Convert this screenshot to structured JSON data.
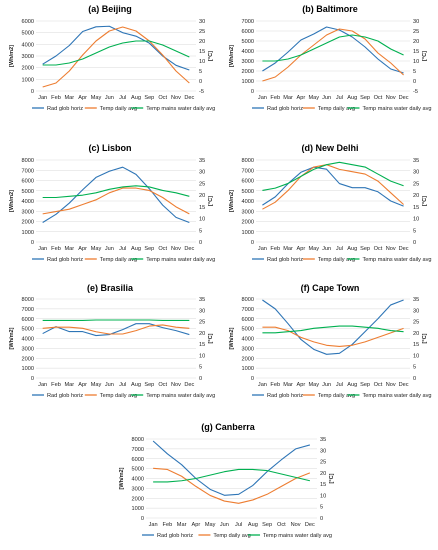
{
  "colors": {
    "rad": "#2E75B6",
    "temp": "#ED7D31",
    "mains": "#00B050",
    "grid": "#d9d9d9"
  },
  "legend": [
    "Rad glob horiz",
    "Temp daily avg",
    "Temp mains water daily avg"
  ],
  "chart_data": [
    {
      "type": "line",
      "title": "(a) Beijing",
      "categories": [
        "Jan",
        "Feb",
        "Mar",
        "Apr",
        "May",
        "Jun",
        "Jul",
        "Aug",
        "Sep",
        "Oct",
        "Nov",
        "Dec"
      ],
      "ylabel_left": "[Wh/m2]",
      "ylabel_right": "[°C]",
      "ylim_left": [
        0,
        6000
      ],
      "ystep_left": 1000,
      "ylim_right": [
        -5,
        30
      ],
      "ystep_right": 5,
      "series": [
        {
          "name": "Rad glob horiz",
          "axis": "left",
          "values": [
            2300,
            3000,
            3900,
            5100,
            5500,
            5550,
            5000,
            4700,
            4100,
            3000,
            2200,
            1800
          ]
        },
        {
          "name": "Temp daily avg",
          "axis": "right",
          "values": [
            -3,
            -1,
            5,
            13,
            20,
            25,
            27,
            25,
            20,
            13,
            5,
            -1
          ]
        },
        {
          "name": "Temp mains water daily avg",
          "axis": "right",
          "values": [
            8,
            8,
            9,
            11,
            14,
            17,
            19,
            20,
            20,
            18,
            15,
            12
          ]
        }
      ]
    },
    {
      "type": "line",
      "title": "(b) Baltimore",
      "categories": [
        "Jan",
        "Feb",
        "Mar",
        "Apr",
        "May",
        "Jun",
        "Jul",
        "Aug",
        "Sep",
        "Oct",
        "Nov",
        "Dec"
      ],
      "ylabel_left": "[Wh/m2]",
      "ylabel_right": "[°C]",
      "ylim_left": [
        0,
        7000
      ],
      "ystep_left": 1000,
      "ylim_right": [
        -5,
        30
      ],
      "ystep_right": 5,
      "series": [
        {
          "name": "Rad glob horiz",
          "axis": "left",
          "values": [
            2000,
            2800,
            3900,
            5100,
            5700,
            6400,
            6100,
            5400,
            4400,
            3200,
            2200,
            1800
          ]
        },
        {
          "name": "Temp daily avg",
          "axis": "right",
          "values": [
            0,
            2,
            7,
            13,
            18,
            23,
            26,
            25,
            21,
            14,
            9,
            3
          ]
        },
        {
          "name": "Temp mains water daily avg",
          "axis": "right",
          "values": [
            10,
            10,
            11,
            13,
            16,
            19,
            22,
            23,
            22,
            20,
            16,
            13
          ]
        }
      ]
    },
    {
      "type": "line",
      "title": "(c) Lisbon",
      "categories": [
        "Jan",
        "Feb",
        "Mar",
        "Apr",
        "May",
        "Jun",
        "Jul",
        "Aug",
        "Sep",
        "Oct",
        "Nov",
        "Dec"
      ],
      "ylabel_left": "[Wh/m2]",
      "ylabel_right": "[°C]",
      "ylim_left": [
        0,
        8000
      ],
      "ystep_left": 1000,
      "ylim_right": [
        0,
        35
      ],
      "ystep_right": 5,
      "series": [
        {
          "name": "Rad glob horiz",
          "axis": "left",
          "values": [
            1900,
            2700,
            3800,
            5100,
            6300,
            6900,
            7300,
            6600,
            5200,
            3600,
            2400,
            1900
          ]
        },
        {
          "name": "Temp daily avg",
          "axis": "right",
          "values": [
            12,
            13,
            14,
            16,
            18,
            21,
            23,
            23,
            22,
            19,
            15,
            12
          ]
        },
        {
          "name": "Temp mains water daily avg",
          "axis": "right",
          "values": [
            19,
            19,
            19.5,
            20,
            21,
            22.5,
            23.5,
            24,
            23.5,
            22,
            21,
            19.5
          ]
        }
      ]
    },
    {
      "type": "line",
      "title": "(d) New Delhi",
      "categories": [
        "Jan",
        "Feb",
        "Mar",
        "Apr",
        "May",
        "Jun",
        "Jul",
        "Aug",
        "Sep",
        "Oct",
        "Nov",
        "Dec"
      ],
      "ylabel_left": "[Wh/m2]",
      "ylabel_right": "[°C]",
      "ylim_left": [
        0,
        8000
      ],
      "ystep_left": 1000,
      "ylim_right": [
        0,
        35
      ],
      "ystep_right": 5,
      "series": [
        {
          "name": "Rad glob horiz",
          "axis": "left",
          "values": [
            3600,
            4400,
            5700,
            6800,
            7300,
            7100,
            5700,
            5300,
            5300,
            4900,
            4000,
            3500
          ]
        },
        {
          "name": "Temp daily avg",
          "axis": "right",
          "values": [
            14,
            17,
            22,
            28,
            32,
            33,
            31,
            30,
            29,
            26,
            21,
            16
          ]
        },
        {
          "name": "Temp mains water daily avg",
          "axis": "right",
          "values": [
            22,
            23,
            25,
            28,
            31,
            33,
            34,
            33,
            32,
            29,
            26,
            24
          ]
        }
      ]
    },
    {
      "type": "line",
      "title": "(e) Brasilia",
      "categories": [
        "Jan",
        "Feb",
        "Mar",
        "Apr",
        "May",
        "Jun",
        "Jul",
        "Aug",
        "Sep",
        "Oct",
        "Nov",
        "Dec"
      ],
      "ylabel_left": "[Wh/m2]",
      "ylabel_right": "[°C]",
      "ylim_left": [
        0,
        8000
      ],
      "ystep_left": 1000,
      "ylim_right": [
        0,
        35
      ],
      "ystep_right": 5,
      "series": [
        {
          "name": "Rad glob horiz",
          "axis": "left",
          "values": [
            4500,
            5200,
            4700,
            4700,
            4300,
            4400,
            4900,
            5500,
            5500,
            5100,
            4800,
            4400
          ]
        },
        {
          "name": "Temp daily avg",
          "axis": "right",
          "values": [
            22,
            22.5,
            22.5,
            22,
            20.5,
            19.5,
            19.5,
            21,
            23,
            23.5,
            22.5,
            22
          ]
        },
        {
          "name": "Temp mains water daily avg",
          "axis": "right",
          "values": [
            25.5,
            25.5,
            25.5,
            25.5,
            25.7,
            25.7,
            25.7,
            25.7,
            25.7,
            25.5,
            25.5,
            25.5
          ]
        }
      ]
    },
    {
      "type": "line",
      "title": "(f) Cape Town",
      "categories": [
        "Jan",
        "Feb",
        "Mar",
        "Apr",
        "May",
        "Jun",
        "Jul",
        "Aug",
        "Sep",
        "Oct",
        "Nov",
        "Dec"
      ],
      "ylabel_left": "[Wh/m2]",
      "ylabel_right": "[°C]",
      "ylim_left": [
        0,
        8000
      ],
      "ystep_left": 1000,
      "ylim_right": [
        0,
        35
      ],
      "ystep_right": 5,
      "series": [
        {
          "name": "Rad glob horiz",
          "axis": "left",
          "values": [
            7900,
            7000,
            5500,
            3900,
            2900,
            2400,
            2500,
            3400,
            4700,
            6000,
            7400,
            7900
          ]
        },
        {
          "name": "Temp daily avg",
          "axis": "right",
          "values": [
            22.5,
            22.5,
            21,
            18,
            16,
            14.5,
            14,
            14.5,
            16,
            18,
            20,
            22
          ]
        },
        {
          "name": "Temp mains water daily avg",
          "axis": "right",
          "values": [
            20,
            20,
            20.5,
            21,
            22,
            22.5,
            23,
            23,
            22.5,
            22,
            21,
            20.5
          ]
        }
      ]
    },
    {
      "type": "line",
      "title": "(g) Canberra",
      "categories": [
        "Jan",
        "Feb",
        "Mar",
        "Apr",
        "May",
        "Jun",
        "Jul",
        "Aug",
        "Sep",
        "Oct",
        "Nov",
        "Dec"
      ],
      "ylabel_left": "[Wh/m2]",
      "ylabel_right": "[°C]",
      "ylim_left": [
        0,
        8000
      ],
      "ystep_left": 1000,
      "ylim_right": [
        0,
        35
      ],
      "ystep_right": 5,
      "series": [
        {
          "name": "Rad glob horiz",
          "axis": "left",
          "values": [
            7800,
            6500,
            5400,
            4000,
            2900,
            2300,
            2400,
            3300,
            4700,
            5900,
            7000,
            7400
          ]
        },
        {
          "name": "Temp daily avg",
          "axis": "right",
          "values": [
            22,
            21.5,
            18.5,
            14,
            10,
            7.5,
            6.5,
            8,
            10.5,
            14,
            17.5,
            20
          ]
        },
        {
          "name": "Temp mains water daily avg",
          "axis": "right",
          "values": [
            16,
            16,
            16.5,
            17.5,
            19,
            20.5,
            21.5,
            21.5,
            21,
            19.5,
            18,
            16.5
          ]
        }
      ]
    }
  ]
}
